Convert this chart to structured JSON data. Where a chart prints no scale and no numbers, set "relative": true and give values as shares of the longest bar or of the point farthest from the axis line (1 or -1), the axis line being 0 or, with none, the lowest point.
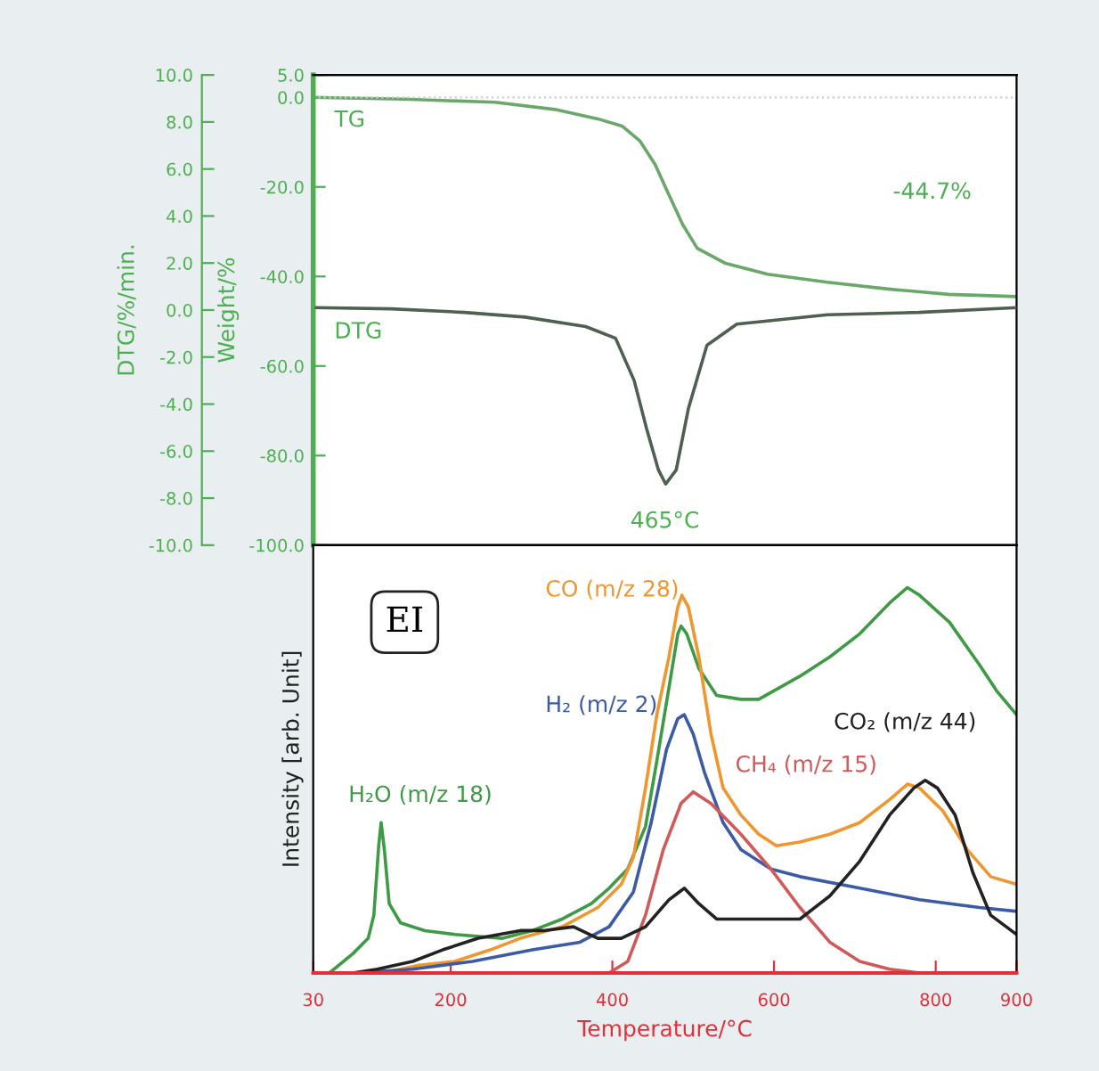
{
  "chart_data": [
    {
      "type": "line",
      "xlim": [
        30,
        900
      ],
      "ylim": [
        -100,
        5
      ],
      "yticks": [
        {
          "value": 5,
          "label": "5.0"
        },
        {
          "value": 0,
          "label": "0.0"
        },
        {
          "value": -20,
          "label": "-20.0"
        },
        {
          "value": -40,
          "label": "-40.0"
        },
        {
          "value": -60,
          "label": "-60.0"
        },
        {
          "value": -80,
          "label": "-80.0"
        },
        {
          "value": -100,
          "label": "-100.0"
        }
      ],
      "y2lim": [
        -10,
        10
      ],
      "y2ticks": [
        {
          "value": 10,
          "label": "10.0"
        },
        {
          "value": 8,
          "label": "8.0"
        },
        {
          "value": 6,
          "label": "6.0"
        },
        {
          "value": 4,
          "label": "4.0"
        },
        {
          "value": 2,
          "label": "2.0"
        },
        {
          "value": 0,
          "label": "0.0"
        },
        {
          "value": -2,
          "label": "-2.0"
        },
        {
          "value": -4,
          "label": "-4.0"
        },
        {
          "value": -6,
          "label": "-6.0"
        },
        {
          "value": -8,
          "label": "-8.0"
        },
        {
          "value": -10,
          "label": "-10.0"
        }
      ],
      "ylabel": "Weight/%",
      "y2label": "DTG/%/min.",
      "tick_labels": "y",
      "grid": false,
      "legend": false,
      "ref_lines": [
        {
          "axis": "y",
          "value": 0,
          "color": "#cccccc",
          "line_style": "dotted"
        }
      ],
      "series": [
        {
          "name": "TG",
          "color": "#6aa86a",
          "x": [
            30,
            142,
            255,
            329,
            382,
            412,
            434,
            453,
            468,
            487,
            505,
            539,
            592,
            666,
            741,
            816,
            900
          ],
          "values": [
            0,
            -0.4,
            -1.1,
            -2.7,
            -4.8,
            -6.4,
            -9.7,
            -15,
            -21,
            -28.4,
            -33.7,
            -37,
            -39.5,
            -41.3,
            -42.8,
            -44,
            -44.5
          ]
        },
        {
          "name": "DTG",
          "axis": "y2",
          "color": "#4f5f50",
          "x": [
            34,
            127,
            217,
            292,
            367,
            404,
            427,
            442,
            457,
            466,
            479,
            494,
            517,
            554,
            666,
            779,
            900
          ],
          "values": [
            0.1,
            0.05,
            -0.1,
            -0.3,
            -0.7,
            -1.2,
            -3,
            -5,
            -6.8,
            -7.4,
            -6.8,
            -4.2,
            -1.5,
            -0.6,
            -0.2,
            -0.1,
            0.1
          ]
        }
      ],
      "annotations": [
        "-44.7%",
        "465°C"
      ]
    },
    {
      "type": "line",
      "relative": true,
      "xlim": [
        30,
        900
      ],
      "xticks": [
        30,
        200,
        400,
        600,
        800,
        900
      ],
      "xlabel": "Temperature/°C",
      "ylabel": "Intensity [arb. Unit]",
      "grid": false,
      "legend": false,
      "series": [
        {
          "name": "H₂O (m/z 18)",
          "color": "#3f9a45",
          "x": [
            50,
            79,
            98,
            105,
            111,
            114,
            118,
            124,
            138,
            168,
            205,
            264,
            301,
            338,
            374,
            396,
            419,
            441,
            455,
            470,
            481,
            485,
            492,
            507,
            529,
            559,
            581,
            632,
            669,
            706,
            743,
            765,
            780,
            817,
            854,
            876,
            900
          ],
          "values": [
            0,
            0.05,
            0.09,
            0.15,
            0.33,
            0.39,
            0.32,
            0.18,
            0.13,
            0.11,
            0.1,
            0.09,
            0.11,
            0.14,
            0.18,
            0.22,
            0.27,
            0.38,
            0.55,
            0.74,
            0.88,
            0.9,
            0.88,
            0.79,
            0.72,
            0.71,
            0.71,
            0.77,
            0.82,
            0.88,
            0.96,
            1,
            0.98,
            0.91,
            0.8,
            0.73,
            0.67
          ]
        },
        {
          "name": "CO (m/z 28)",
          "color": "#f0962e",
          "x": [
            116,
            161,
            205,
            249,
            286,
            338,
            382,
            411,
            426,
            441,
            455,
            470,
            481,
            486,
            494,
            507,
            522,
            537,
            559,
            581,
            603,
            632,
            669,
            706,
            743,
            765,
            780,
            809,
            839,
            868,
            900
          ],
          "values": [
            0,
            0.02,
            0.03,
            0.06,
            0.09,
            0.12,
            0.17,
            0.23,
            0.3,
            0.48,
            0.67,
            0.82,
            0.95,
            0.98,
            0.95,
            0.82,
            0.62,
            0.48,
            0.41,
            0.36,
            0.33,
            0.34,
            0.36,
            0.39,
            0.45,
            0.49,
            0.48,
            0.42,
            0.32,
            0.25,
            0.23
          ]
        },
        {
          "name": "H₂ (m/z 2)",
          "color": "#3c5aa6",
          "x": [
            79,
            153,
            227,
            301,
            360,
            396,
            426,
            448,
            467,
            481,
            489,
            500,
            514,
            537,
            559,
            596,
            632,
            706,
            780,
            854,
            900
          ],
          "values": [
            0,
            0.01,
            0.03,
            0.06,
            0.08,
            0.12,
            0.21,
            0.39,
            0.58,
            0.66,
            0.67,
            0.62,
            0.52,
            0.39,
            0.32,
            0.27,
            0.25,
            0.22,
            0.19,
            0.17,
            0.16
          ]
        },
        {
          "name": "CH₄ (m/z 15)",
          "color": "#d05a5a",
          "x": [
            30,
            396,
            419,
            441,
            463,
            485,
            500,
            522,
            559,
            596,
            632,
            669,
            706,
            743,
            780,
            900
          ],
          "values": [
            0,
            0,
            0.03,
            0.15,
            0.32,
            0.44,
            0.47,
            0.44,
            0.36,
            0.27,
            0.17,
            0.08,
            0.03,
            0.01,
            0,
            0
          ]
        },
        {
          "name": "CO₂ (m/z 44)",
          "color": "#222222",
          "x": [
            30,
            79,
            109,
            153,
            190,
            234,
            286,
            315,
            352,
            382,
            411,
            441,
            470,
            489,
            507,
            529,
            559,
            596,
            632,
            669,
            706,
            743,
            773,
            787,
            802,
            824,
            846,
            868,
            900
          ],
          "values": [
            0,
            0,
            0.01,
            0.03,
            0.06,
            0.09,
            0.11,
            0.11,
            0.12,
            0.09,
            0.09,
            0.12,
            0.19,
            0.22,
            0.18,
            0.14,
            0.14,
            0.14,
            0.14,
            0.2,
            0.29,
            0.41,
            0.48,
            0.5,
            0.48,
            0.41,
            0.26,
            0.15,
            0.1
          ]
        }
      ],
      "annotations": [
        "EI"
      ]
    }
  ]
}
